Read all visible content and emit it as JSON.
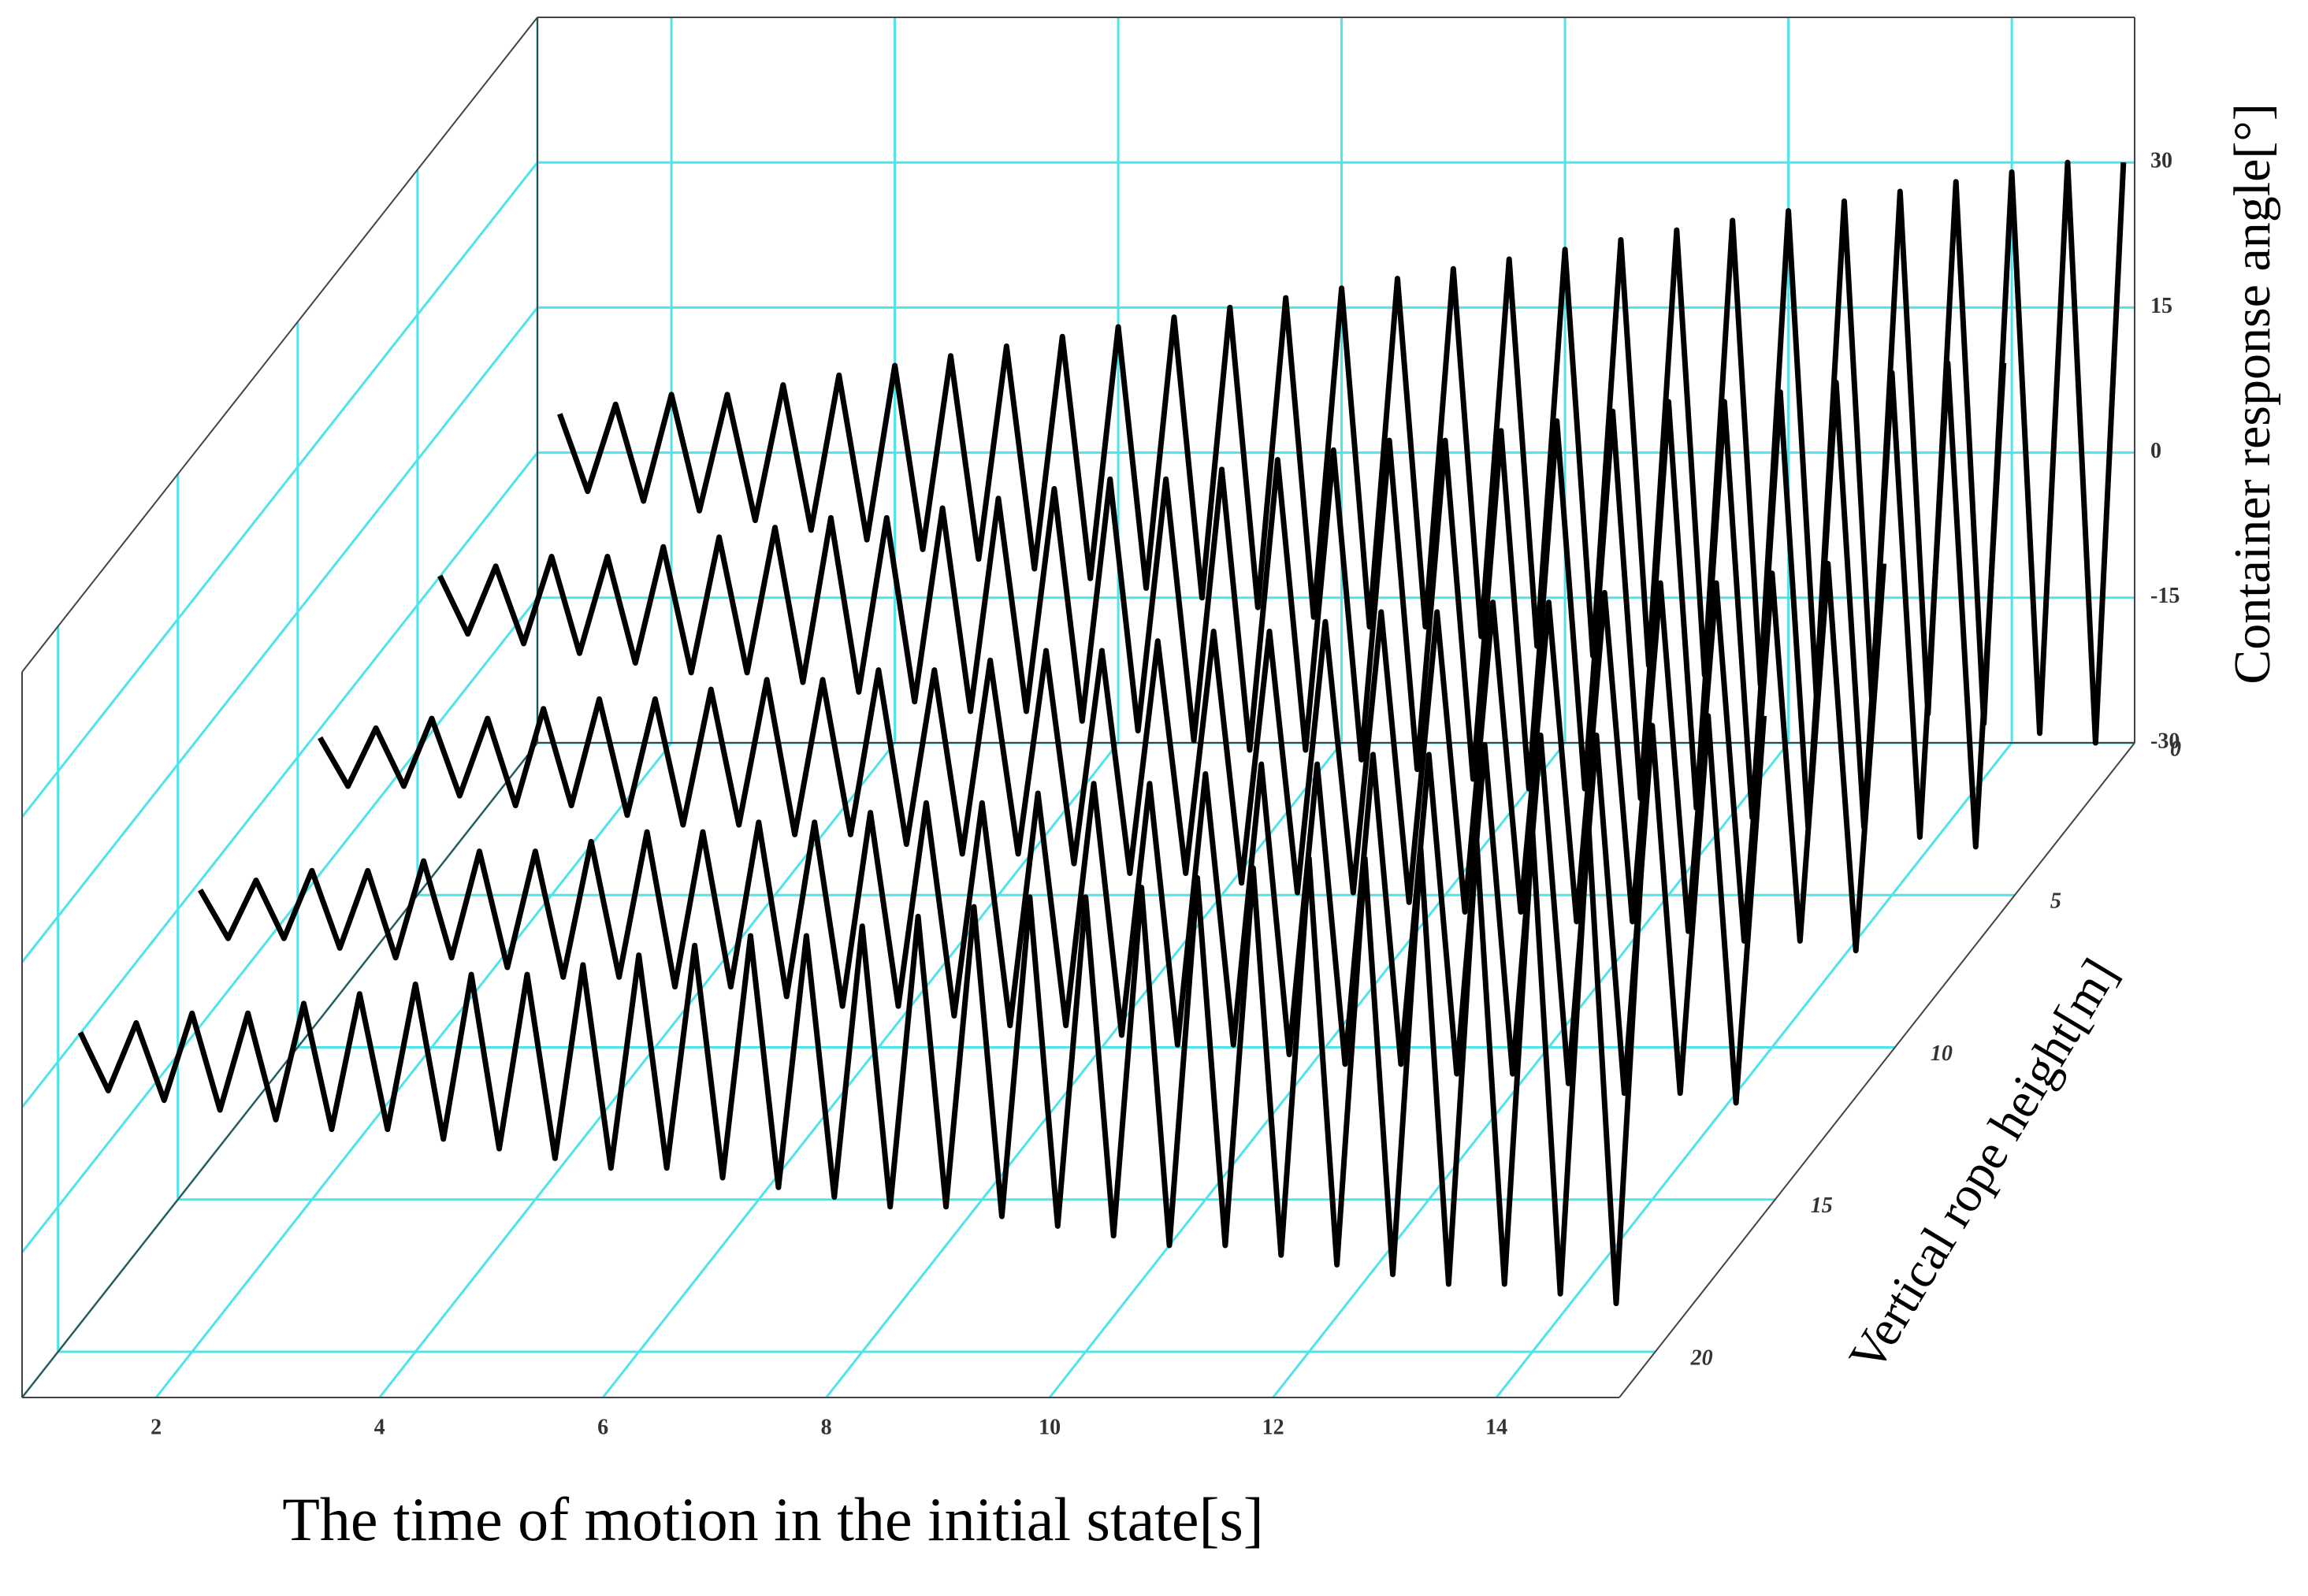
{
  "chart_data": {
    "type": "surface3d",
    "xlabel": "The time of motion in the initial state[s]",
    "ylabel": "Vertical rope height[m]",
    "zlabel": "Container response angle[°]",
    "xlim": [
      0.8,
      15.1
    ],
    "ylim": [
      0,
      21.5
    ],
    "zlim": [
      -30,
      45
    ],
    "xticks": [
      2,
      4,
      6,
      8,
      10,
      12,
      14
    ],
    "yticks": [
      0,
      5,
      10,
      15,
      20
    ],
    "zticks": [
      -30,
      -15,
      0,
      15,
      30
    ],
    "grid_color": "#4fe3ea",
    "x": [
      1,
      1.25,
      1.5,
      1.75,
      2,
      2.25,
      2.5,
      2.75,
      3,
      3.25,
      3.5,
      3.75,
      4,
      4.25,
      4.5,
      4.75,
      5,
      5.25,
      5.5,
      5.75,
      6,
      6.25,
      6.5,
      6.75,
      7,
      7.25,
      7.5,
      7.75,
      8,
      8.25,
      8.5,
      8.75,
      9,
      9.25,
      9.5,
      9.75,
      10,
      10.25,
      10.5,
      10.75,
      11,
      11.25,
      11.5,
      11.75,
      12,
      12.25,
      12.5,
      12.75,
      13,
      13.25,
      13.5,
      13.75,
      14,
      14.25,
      14.5,
      14.75,
      15
    ],
    "series": [
      {
        "y": 0,
        "color": "#000000",
        "values": [
          4,
          -4,
          5,
          -5,
          6,
          -6,
          6,
          -7,
          7,
          -8,
          8,
          -9,
          9,
          -10,
          10,
          -11,
          11,
          -12,
          12,
          -13,
          13,
          -14,
          14,
          -15,
          15,
          -16,
          16,
          -17,
          17,
          -18,
          18,
          -18,
          19,
          -19,
          20,
          -20,
          21,
          -21,
          22,
          -22,
          23,
          -23,
          24,
          -24,
          25,
          -25,
          26,
          -26,
          27,
          -27,
          28,
          -28,
          29,
          -29,
          30,
          -30,
          30
        ]
      },
      {
        "y": 5,
        "color": "#000000",
        "values": [
          3,
          -3,
          4,
          -4,
          5,
          -5,
          5,
          -6,
          6,
          -7,
          7,
          -7,
          8,
          -8,
          9,
          -9,
          9,
          -10,
          10,
          -11,
          11,
          -11,
          12,
          -12,
          13,
          -13,
          13,
          -14,
          14,
          -15,
          15,
          -15,
          16,
          -16,
          17,
          -17,
          17,
          -18,
          18,
          -19,
          19,
          -19,
          20,
          -20,
          21,
          -21,
          21,
          -22,
          22,
          -23,
          23,
          -23,
          24,
          -24,
          25,
          -25,
          25
        ]
      },
      {
        "y": 10,
        "color": "#000000",
        "values": [
          2,
          -3,
          3,
          -3,
          4,
          -4,
          4,
          -5,
          5,
          -5,
          6,
          -6,
          6,
          -7,
          7,
          -7,
          8,
          -8,
          8,
          -8,
          9,
          -9,
          9,
          -10,
          10,
          -10,
          11,
          -11,
          11,
          -12,
          12,
          -12,
          13,
          -13,
          13,
          -14,
          14,
          -14,
          15,
          -15,
          15,
          -16,
          16,
          -16,
          16,
          -17,
          17,
          -17,
          18,
          -18,
          18,
          -19,
          19,
          -19,
          20,
          -20,
          20
        ]
      },
      {
        "y": 15,
        "color": "#000000",
        "values": [
          2,
          -3,
          3,
          -3,
          4,
          -4,
          4,
          -5,
          5,
          -5,
          6,
          -6,
          6,
          -7,
          7,
          -7,
          8,
          -8,
          8,
          -8,
          9,
          -9,
          9,
          -10,
          10,
          -10,
          11,
          -11,
          11,
          -12,
          12,
          -12,
          13,
          -13,
          13,
          -14,
          14,
          -14,
          15,
          -15,
          15,
          -16,
          16,
          -16,
          16,
          -17,
          17,
          -17,
          18,
          -18,
          18,
          -19,
          19,
          -19,
          20,
          -20,
          20
        ]
      },
      {
        "y": 20,
        "color": "#000000",
        "values": [
          3,
          -3,
          4,
          -4,
          5,
          -5,
          5,
          -6,
          6,
          -7,
          7,
          -7,
          8,
          -8,
          9,
          -9,
          9,
          -10,
          10,
          -11,
          11,
          -11,
          12,
          -12,
          13,
          -13,
          13,
          -14,
          14,
          -15,
          15,
          -15,
          16,
          -16,
          17,
          -17,
          17,
          -18,
          18,
          -19,
          19,
          -19,
          20,
          -20,
          21,
          -21,
          21,
          -22,
          22,
          -23,
          23,
          -23,
          24,
          -24,
          25,
          -25,
          25
        ]
      }
    ]
  }
}
